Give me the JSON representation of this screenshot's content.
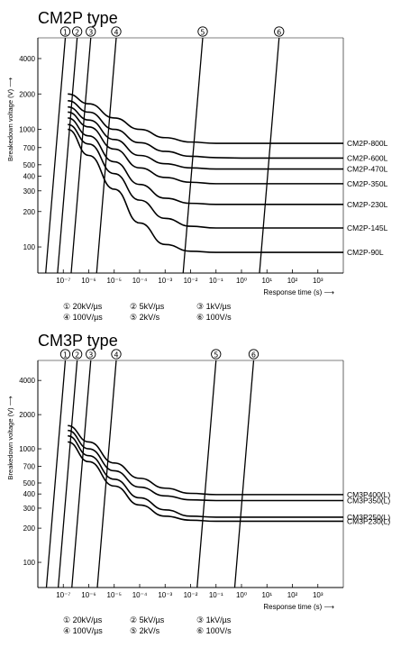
{
  "chart_data": [
    {
      "type": "line",
      "title": "CM2P type",
      "xlabel": "Response time (s)",
      "ylabel": "Breakedown voltage (V)",
      "x_scale": "log",
      "y_scale": "log",
      "xlim": [
        1e-08,
        10000.0
      ],
      "ylim": [
        60,
        6000
      ],
      "x_ticks": [
        1e-07,
        1e-06,
        1e-05,
        0.0001,
        0.001,
        0.01,
        0.1,
        1,
        10,
        100,
        1000
      ],
      "x_tick_labels": [
        "10⁻⁷",
        "10⁻⁶",
        "10⁻⁵",
        "10⁻⁴",
        "10⁻³",
        "10⁻²",
        "10⁻¹",
        "10⁰",
        "10¹",
        "10²",
        "10³"
      ],
      "y_ticks": [
        100,
        200,
        300,
        400,
        500,
        700,
        1000,
        2000,
        4000
      ],
      "y_tick_labels": [
        "100",
        "200",
        "300",
        "400",
        "500",
        "700",
        "1000",
        "2000",
        "4000"
      ],
      "series": [
        {
          "name": "CM2P-800L",
          "x": [
            1.5e-07,
            1e-06,
            1e-05,
            0.0001,
            0.001,
            0.01,
            0.1,
            1,
            10,
            100,
            1000,
            10000
          ],
          "y": [
            2000,
            1650,
            1250,
            1000,
            850,
            780,
            760,
            760,
            760,
            760,
            760,
            760
          ]
        },
        {
          "name": "CM2P-600L",
          "x": [
            1.5e-07,
            1e-06,
            1e-05,
            0.0001,
            0.001,
            0.01,
            0.1,
            1,
            10,
            100,
            1000,
            10000
          ],
          "y": [
            1750,
            1400,
            1000,
            770,
            650,
            590,
            575,
            570,
            570,
            570,
            570,
            570
          ]
        },
        {
          "name": "CM2P-470L",
          "x": [
            1.5e-07,
            1e-06,
            1e-05,
            0.0001,
            0.001,
            0.01,
            0.1,
            1,
            10,
            100,
            1000,
            10000
          ],
          "y": [
            1550,
            1200,
            820,
            600,
            510,
            470,
            460,
            460,
            460,
            460,
            460,
            460
          ]
        },
        {
          "name": "CM2P-350L",
          "x": [
            1.5e-07,
            1e-06,
            1e-05,
            0.0001,
            0.001,
            0.01,
            0.1,
            1,
            10,
            100,
            1000,
            10000
          ],
          "y": [
            1400,
            1050,
            680,
            470,
            390,
            355,
            345,
            345,
            345,
            345,
            345,
            345
          ]
        },
        {
          "name": "CM2P-230L",
          "x": [
            1.5e-07,
            1e-06,
            1e-05,
            0.0001,
            0.001,
            0.01,
            0.1,
            1,
            10,
            100,
            1000,
            10000
          ],
          "y": [
            1250,
            880,
            530,
            340,
            260,
            235,
            230,
            230,
            230,
            230,
            230,
            230
          ]
        },
        {
          "name": "CM2P-145L",
          "x": [
            1.5e-07,
            1e-06,
            1e-05,
            0.0001,
            0.001,
            0.01,
            0.1,
            1,
            10,
            100,
            1000,
            10000
          ],
          "y": [
            1100,
            750,
            420,
            250,
            175,
            150,
            145,
            145,
            145,
            145,
            145,
            145
          ]
        },
        {
          "name": "CM2P-90L",
          "x": [
            1.5e-07,
            1e-06,
            1e-05,
            0.0001,
            0.001,
            0.01,
            0.1,
            1,
            10,
            100,
            1000,
            10000
          ],
          "y": [
            1000,
            600,
            310,
            160,
            105,
            92,
            90,
            90,
            90,
            90,
            90,
            90
          ]
        }
      ],
      "ramps": [
        {
          "label": "①",
          "x_top": 1.2e-07
        },
        {
          "label": "②",
          "x_top": 3.5e-07
        },
        {
          "label": "③",
          "x_top": 1.2e-06
        },
        {
          "label": "④",
          "x_top": 1.2e-05
        },
        {
          "label": "⑤",
          "x_top": 0.03
        },
        {
          "label": "⑥",
          "x_top": 30
        }
      ],
      "legend_rows": [
        [
          "① 20kV/µs",
          "② 5kV/µs",
          "③ 1kV/µs"
        ],
        [
          "④ 100V/µs",
          "⑤ 2kV/s",
          "⑥ 100V/s"
        ]
      ],
      "grid": false
    },
    {
      "type": "line",
      "title": "CM3P type",
      "xlabel": "Response time (s)",
      "ylabel": "Breakedown voltage (V)",
      "x_scale": "log",
      "y_scale": "log",
      "xlim": [
        1e-08,
        10000.0
      ],
      "ylim": [
        60,
        6000
      ],
      "x_ticks": [
        1e-07,
        1e-06,
        1e-05,
        0.0001,
        0.001,
        0.01,
        0.1,
        1,
        10,
        100,
        1000
      ],
      "x_tick_labels": [
        "10⁻⁷",
        "10⁻⁶",
        "10⁻⁵",
        "10⁻⁴",
        "10⁻³",
        "10⁻²",
        "10⁻¹",
        "10⁰",
        "10¹",
        "10²",
        "10³"
      ],
      "y_ticks": [
        100,
        200,
        300,
        400,
        500,
        700,
        1000,
        2000,
        4000
      ],
      "y_tick_labels": [
        "100",
        "200",
        "300",
        "400",
        "500",
        "700",
        "1000",
        "2000",
        "4000"
      ],
      "series": [
        {
          "name": "CM3P400(L)",
          "x": [
            1.5e-07,
            1e-06,
            1e-05,
            0.0001,
            0.001,
            0.01,
            0.1,
            1,
            10,
            100,
            1000,
            10000
          ],
          "y": [
            1600,
            1150,
            750,
            550,
            450,
            405,
            395,
            395,
            395,
            395,
            395,
            395
          ]
        },
        {
          "name": "CM3P350(L)",
          "x": [
            1.5e-07,
            1e-06,
            1e-05,
            0.0001,
            0.001,
            0.01,
            0.1,
            1,
            10,
            100,
            1000,
            10000
          ],
          "y": [
            1450,
            1000,
            640,
            460,
            385,
            355,
            350,
            350,
            350,
            350,
            350,
            350
          ]
        },
        {
          "name": "CM3P250(L)",
          "x": [
            1.5e-07,
            1e-06,
            1e-05,
            0.0001,
            0.001,
            0.01,
            0.1,
            1,
            10,
            100,
            1000,
            10000
          ],
          "y": [
            1300,
            870,
            540,
            370,
            290,
            255,
            250,
            250,
            250,
            250,
            250,
            250
          ]
        },
        {
          "name": "CM3P230(L)",
          "x": [
            1.5e-07,
            1e-06,
            1e-05,
            0.0001,
            0.001,
            0.01,
            0.1,
            1,
            10,
            100,
            1000,
            10000
          ],
          "y": [
            1150,
            770,
            470,
            320,
            255,
            235,
            230,
            230,
            230,
            230,
            230,
            230
          ]
        }
      ],
      "ramps": [
        {
          "label": "①",
          "x_top": 1.2e-07
        },
        {
          "label": "②",
          "x_top": 3.5e-07
        },
        {
          "label": "③",
          "x_top": 1.2e-06
        },
        {
          "label": "④",
          "x_top": 1.2e-05
        },
        {
          "label": "⑤",
          "x_top": 0.1
        },
        {
          "label": "⑥",
          "x_top": 3
        }
      ],
      "legend_rows": [
        [
          "① 20kV/µs",
          "② 5kV/µs",
          "③ 1kV/µs"
        ],
        [
          "④ 100V/µs",
          "⑤ 2kV/s",
          "⑥ 100V/s"
        ]
      ],
      "grid": false
    }
  ]
}
